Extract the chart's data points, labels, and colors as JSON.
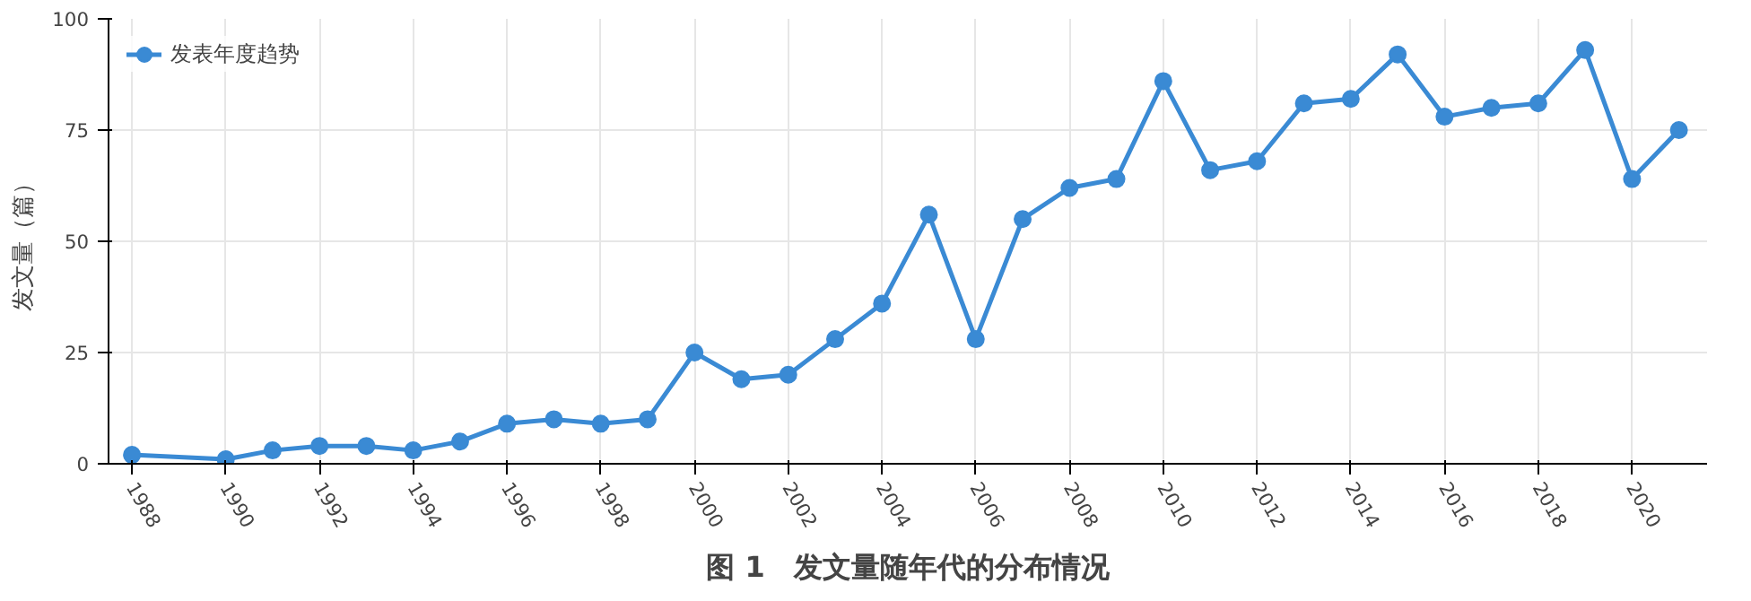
{
  "chart_data": {
    "type": "line",
    "title": "图 1　发文量随年代的分布情况",
    "ylabel": "发文量（篇）",
    "x": [
      1988,
      1990,
      1991,
      1992,
      1993,
      1994,
      1995,
      1996,
      1997,
      1998,
      1999,
      2000,
      2001,
      2002,
      2003,
      2004,
      2005,
      2006,
      2007,
      2008,
      2009,
      2010,
      2011,
      2012,
      2013,
      2014,
      2015,
      2016,
      2017,
      2018,
      2019,
      2020,
      2021
    ],
    "series": [
      {
        "name": "发表年度趋势",
        "color": "#3a8ad4",
        "values": [
          2,
          1,
          3,
          4,
          4,
          3,
          5,
          9,
          10,
          9,
          10,
          25,
          19,
          20,
          28,
          36,
          56,
          28,
          55,
          62,
          64,
          86,
          66,
          68,
          81,
          82,
          92,
          78,
          80,
          81,
          93,
          64,
          75
        ]
      }
    ],
    "xlim": [
      1987.5,
      2021.6
    ],
    "xticks": [
      1988,
      1990,
      1992,
      1994,
      1996,
      1998,
      2000,
      2002,
      2004,
      2006,
      2008,
      2010,
      2012,
      2014,
      2016,
      2018,
      2020
    ],
    "ylim": [
      0,
      100
    ],
    "yticks": [
      0,
      25,
      50,
      75,
      100
    ],
    "grid": true,
    "legend": "top left",
    "marker": "circle",
    "line_style": "solid"
  }
}
